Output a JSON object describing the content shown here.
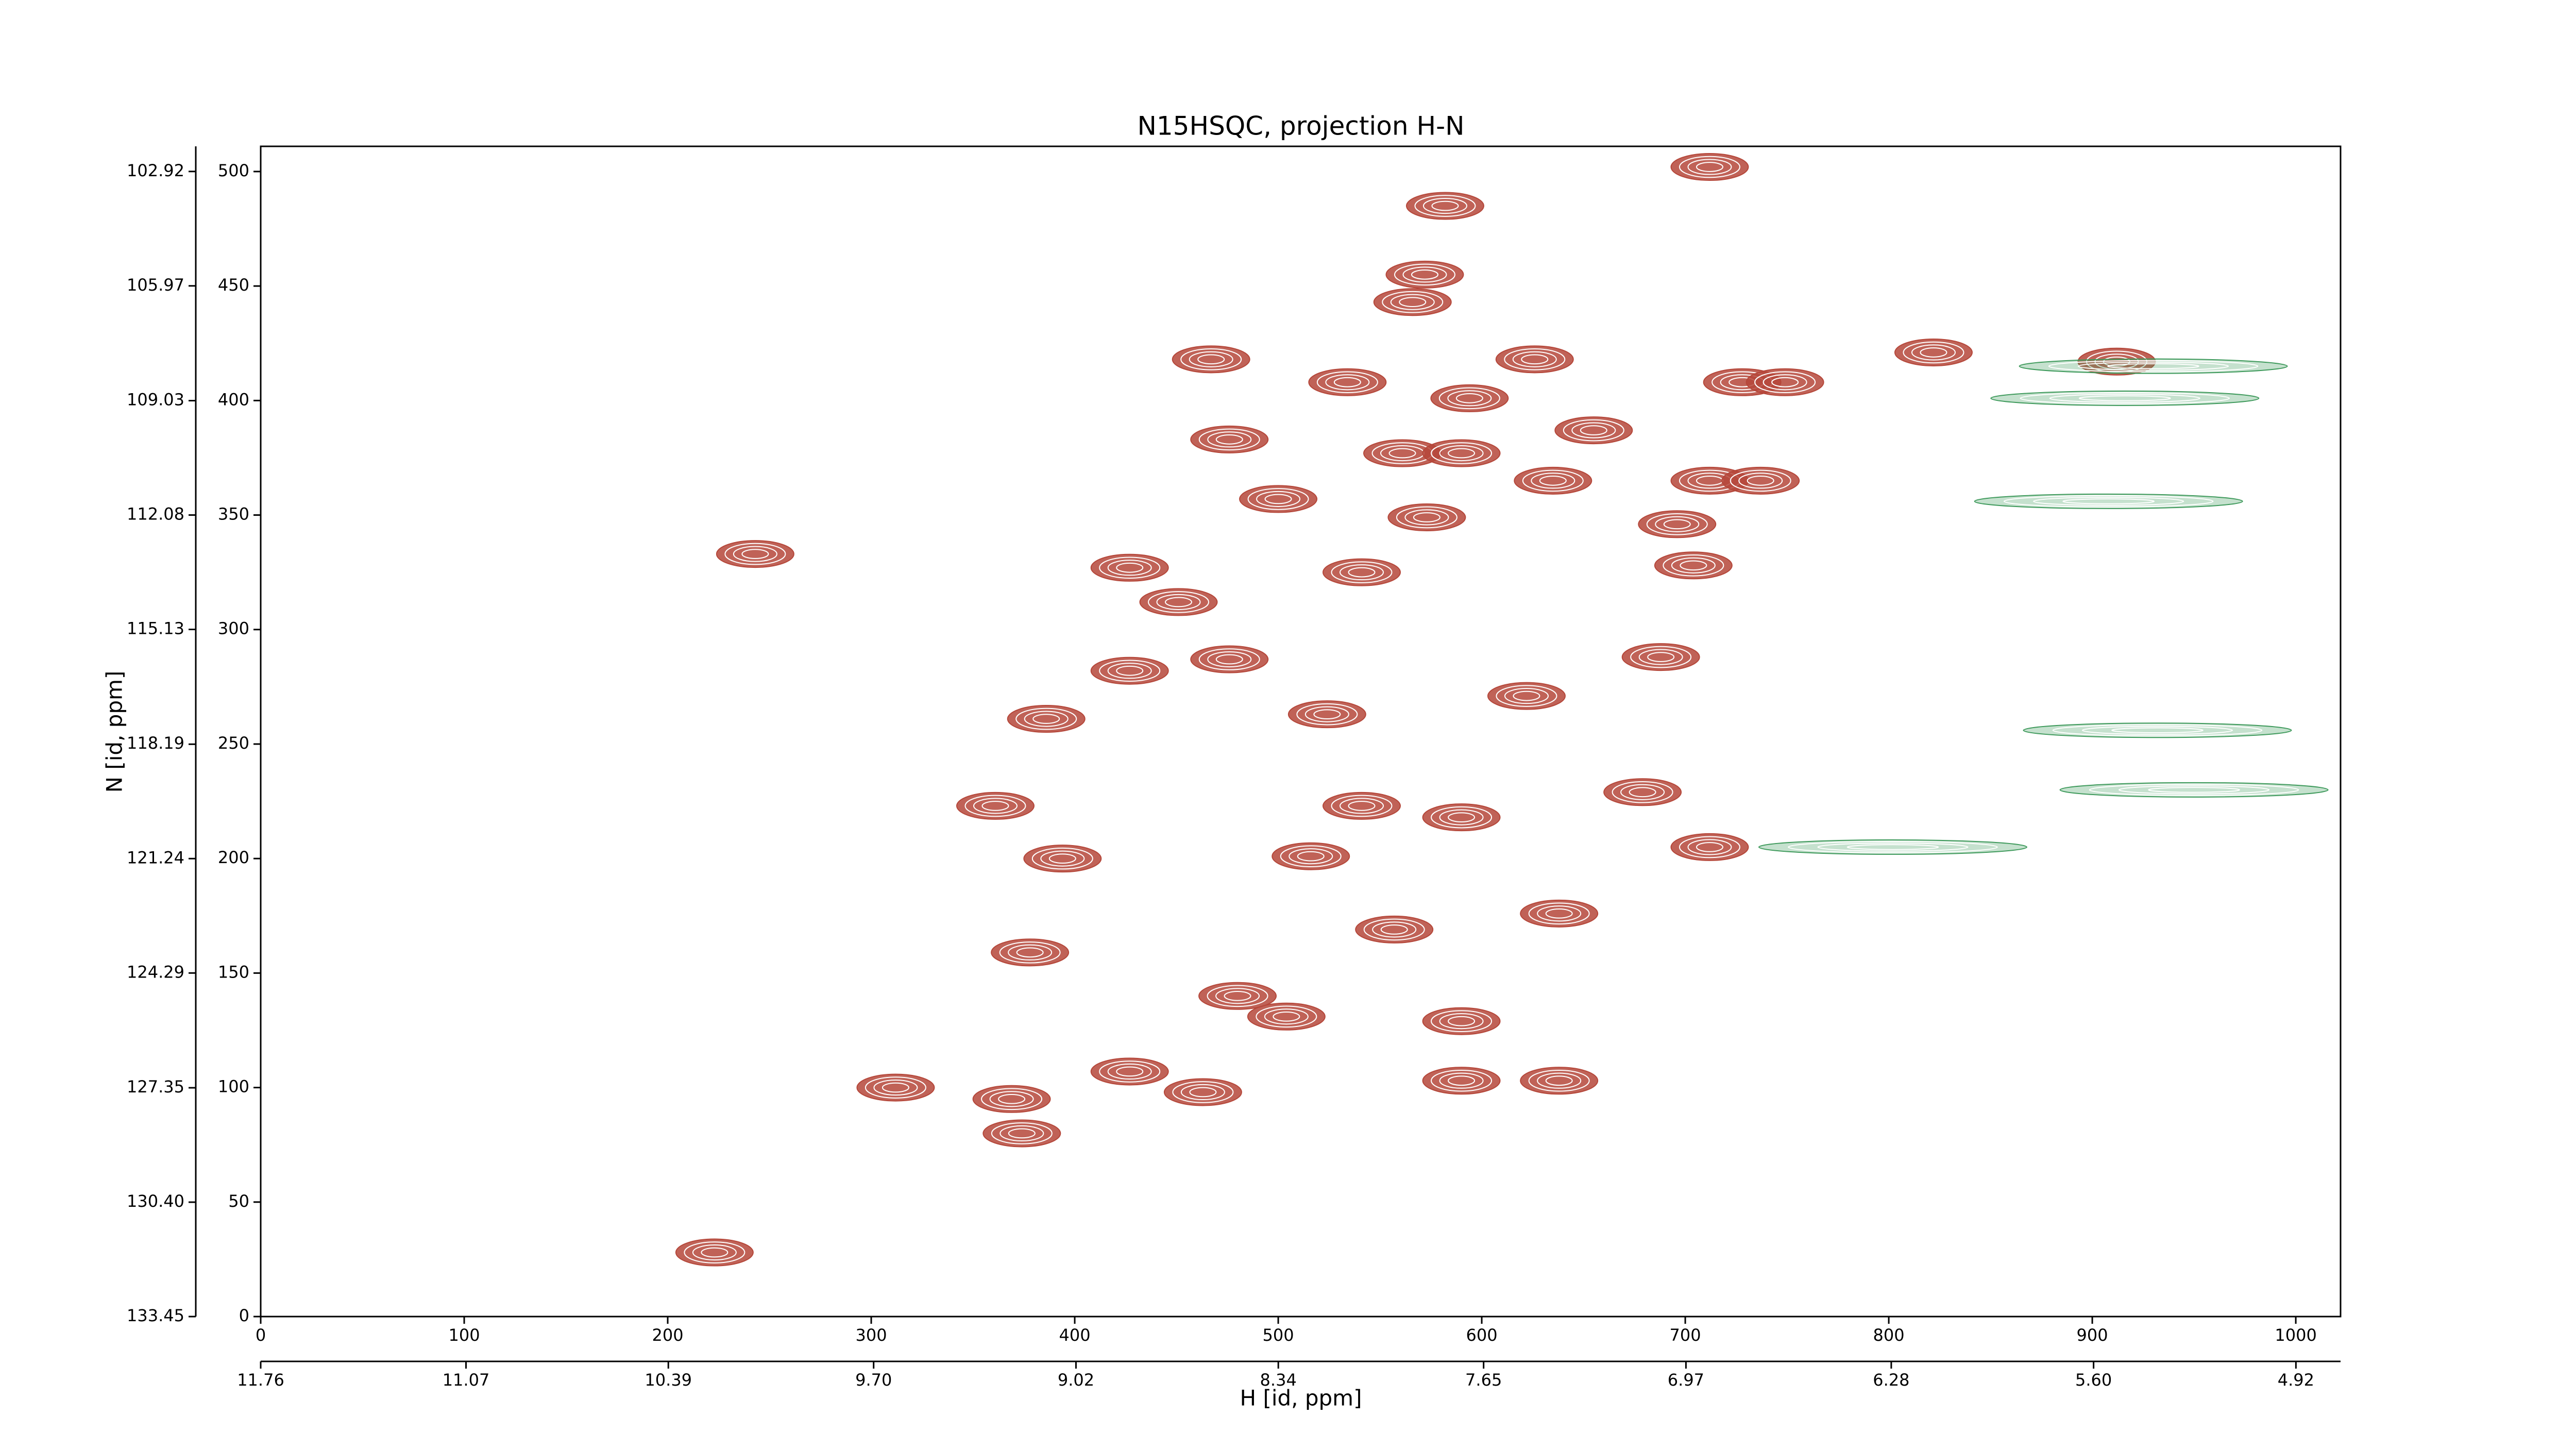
{
  "chart_data": {
    "type": "contour",
    "title": "N15HSQC, projection H-N",
    "xlabel": "H [id, ppm]",
    "ylabel": "N [id, ppm]",
    "xlim": [
      0,
      1022
    ],
    "ylim": [
      0,
      511
    ],
    "xticks": [
      0,
      100,
      200,
      300,
      400,
      500,
      600,
      700,
      800,
      900,
      1000
    ],
    "yticks": [
      0,
      50,
      100,
      150,
      200,
      250,
      300,
      350,
      400,
      450,
      500
    ],
    "x2lim": [
      11.76,
      4.77
    ],
    "x2ticks": [
      11.76,
      11.07,
      10.39,
      {
        "value": 9.7,
        "label": "9.70"
      },
      9.02,
      8.34,
      7.65,
      6.97,
      6.28,
      {
        "value": 5.6,
        "label": "5.60"
      },
      4.92
    ],
    "y2lim": [
      133.45,
      102.25
    ],
    "y2ticks": [
      133.45,
      130.4,
      127.35,
      124.29,
      121.24,
      118.19,
      115.13,
      112.08,
      109.03,
      105.97,
      102.92
    ],
    "y2tick_labels": [
      "133.45",
      "130.40",
      "127.35",
      "124.29",
      "121.24",
      "118.19",
      "115.13",
      "112.08",
      "109.03",
      "105.97",
      "102.92"
    ],
    "series": [
      {
        "color": "#b5473a",
        "x": [
          582,
          572,
          566,
          467,
          534,
          626,
          728,
          749,
          822,
          912,
          594,
          476,
          655,
          561,
          590,
          500,
          635,
          712,
          737,
          573,
          696,
          243,
          427,
          541,
          704,
          451,
          427,
          476,
          688,
          386,
          524,
          622,
          361,
          679,
          541,
          590,
          712,
          394,
          516,
          638,
          557,
          378,
          480,
          504,
          590,
          427,
          463,
          312,
          369,
          374,
          590,
          638,
          223,
          712
        ],
        "values": [
          485,
          455,
          443,
          418,
          408,
          418,
          408,
          408,
          421,
          417,
          401,
          383,
          387,
          377,
          377,
          357,
          365,
          365,
          365,
          349,
          346,
          333,
          327,
          325,
          328,
          312,
          282,
          287,
          288,
          261,
          263,
          271,
          223,
          229,
          223,
          218,
          205,
          200,
          201,
          176,
          169,
          159,
          140,
          131,
          129,
          107,
          98,
          100,
          95,
          80,
          103,
          103,
          28,
          502
        ]
      },
      {
        "color": "#3f9a5c",
        "x": [
          908,
          916,
          802,
          932,
          950,
          930
        ],
        "values": [
          356,
          401,
          205,
          256,
          230,
          415
        ]
      }
    ]
  }
}
